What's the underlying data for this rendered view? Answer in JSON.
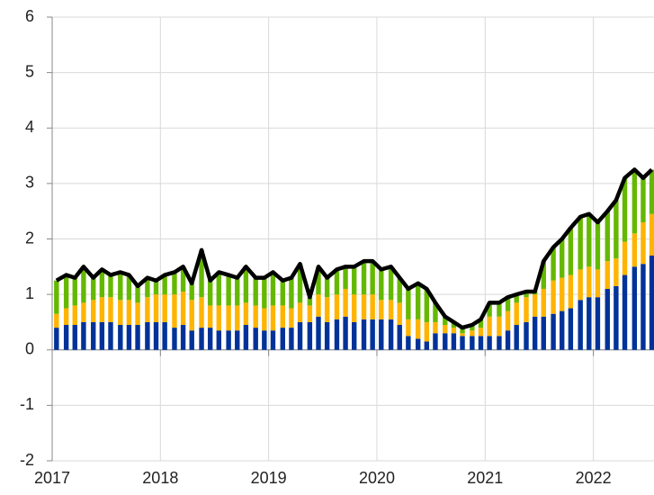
{
  "chart_data": {
    "type": "stacked_bar_line",
    "x": [
      2017.04,
      2017.13,
      2017.21,
      2017.29,
      2017.38,
      2017.46,
      2017.54,
      2017.63,
      2017.71,
      2017.79,
      2017.88,
      2017.96,
      2018.04,
      2018.13,
      2018.21,
      2018.29,
      2018.38,
      2018.46,
      2018.54,
      2018.63,
      2018.71,
      2018.79,
      2018.88,
      2018.96,
      2019.04,
      2019.13,
      2019.21,
      2019.29,
      2019.38,
      2019.46,
      2019.54,
      2019.63,
      2019.71,
      2019.79,
      2019.88,
      2019.96,
      2020.04,
      2020.13,
      2020.21,
      2020.29,
      2020.38,
      2020.46,
      2020.54,
      2020.63,
      2020.71,
      2020.79,
      2020.88,
      2020.96,
      2021.04,
      2021.13,
      2021.21,
      2021.29,
      2021.38,
      2021.46,
      2021.54,
      2021.63,
      2021.71,
      2021.79,
      2021.88,
      2021.96,
      2022.04,
      2022.13,
      2022.21,
      2022.29,
      2022.38,
      2022.46,
      2022.54
    ],
    "series": [
      {
        "color": "#003299",
        "values": [
          0.4,
          0.45,
          0.45,
          0.5,
          0.5,
          0.5,
          0.5,
          0.45,
          0.45,
          0.45,
          0.5,
          0.5,
          0.5,
          0.4,
          0.45,
          0.35,
          0.4,
          0.4,
          0.35,
          0.35,
          0.35,
          0.45,
          0.4,
          0.35,
          0.35,
          0.4,
          0.4,
          0.5,
          0.5,
          0.6,
          0.5,
          0.55,
          0.6,
          0.5,
          0.55,
          0.55,
          0.55,
          0.55,
          0.45,
          0.25,
          0.2,
          0.15,
          0.3,
          0.3,
          0.3,
          0.25,
          0.25,
          0.25,
          0.25,
          0.25,
          0.35,
          0.45,
          0.5,
          0.6,
          0.6,
          0.65,
          0.7,
          0.75,
          0.9,
          0.95,
          0.95,
          1.1,
          1.15,
          1.35,
          1.5,
          1.55,
          1.7
        ]
      },
      {
        "color": "#ffb400",
        "values": [
          0.25,
          0.3,
          0.35,
          0.35,
          0.4,
          0.45,
          0.45,
          0.45,
          0.45,
          0.4,
          0.45,
          0.5,
          0.5,
          0.6,
          0.6,
          0.55,
          0.55,
          0.4,
          0.45,
          0.45,
          0.45,
          0.4,
          0.4,
          0.4,
          0.45,
          0.4,
          0.35,
          0.35,
          0.3,
          0.4,
          0.45,
          0.45,
          0.5,
          0.5,
          0.45,
          0.45,
          0.35,
          0.35,
          0.4,
          0.3,
          0.35,
          0.35,
          0.2,
          0.15,
          0.1,
          0.05,
          0.1,
          0.15,
          0.35,
          0.35,
          0.35,
          0.4,
          0.45,
          0.4,
          0.5,
          0.6,
          0.6,
          0.6,
          0.55,
          0.55,
          0.5,
          0.5,
          0.5,
          0.6,
          0.6,
          0.75,
          0.75
        ]
      },
      {
        "color": "#65b800",
        "values": [
          0.6,
          0.6,
          0.5,
          0.65,
          0.4,
          0.5,
          0.4,
          0.5,
          0.45,
          0.3,
          0.35,
          0.25,
          0.35,
          0.4,
          0.45,
          0.3,
          0.85,
          0.45,
          0.6,
          0.55,
          0.5,
          0.65,
          0.5,
          0.55,
          0.6,
          0.45,
          0.55,
          0.7,
          0.15,
          0.5,
          0.35,
          0.45,
          0.4,
          0.5,
          0.6,
          0.6,
          0.55,
          0.6,
          0.45,
          0.55,
          0.65,
          0.6,
          0.35,
          0.15,
          0.1,
          0.1,
          0.1,
          0.15,
          0.25,
          0.25,
          0.25,
          0.15,
          0.1,
          0.05,
          0.5,
          0.6,
          0.7,
          0.85,
          0.95,
          0.95,
          0.85,
          0.9,
          1.05,
          1.15,
          1.15,
          0.8,
          0.8
        ]
      },
      {
        "type": "line",
        "color": "#000000",
        "values": [
          1.25,
          1.35,
          1.3,
          1.5,
          1.3,
          1.45,
          1.35,
          1.4,
          1.35,
          1.15,
          1.3,
          1.25,
          1.35,
          1.4,
          1.5,
          1.2,
          1.8,
          1.25,
          1.4,
          1.35,
          1.3,
          1.5,
          1.3,
          1.3,
          1.4,
          1.25,
          1.3,
          1.55,
          0.95,
          1.5,
          1.3,
          1.45,
          1.5,
          1.5,
          1.6,
          1.6,
          1.45,
          1.5,
          1.3,
          1.1,
          1.2,
          1.1,
          0.85,
          0.6,
          0.5,
          0.4,
          0.45,
          0.55,
          0.85,
          0.85,
          0.95,
          1.0,
          1.05,
          1.05,
          1.6,
          1.85,
          2.0,
          2.2,
          2.4,
          2.45,
          2.3,
          2.5,
          2.7,
          3.1,
          3.25,
          3.1,
          3.25
        ]
      }
    ],
    "xlim": [
      2017,
      2022.56
    ],
    "xticks": [
      2017,
      2018,
      2019,
      2020,
      2021,
      2022
    ],
    "ylim": [
      -2,
      6
    ],
    "yticks": [
      -2,
      -1,
      0,
      1,
      2,
      3,
      4,
      5,
      6
    ],
    "grid": true
  }
}
